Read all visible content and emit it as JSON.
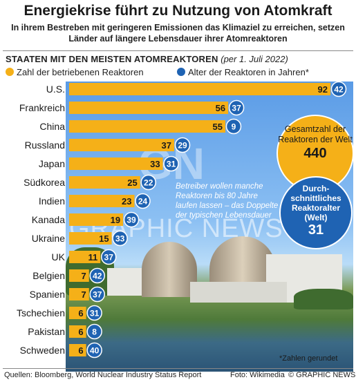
{
  "title": "Energiekrise führt zu Nutzung von Atomkraft",
  "subtitle": "In ihrem Bestreben mit geringeren Emissionen das Klimaziel zu erreichen, setzen Länder auf längere Lebensdauer ihrer Atomreaktoren",
  "chart_heading": "STAATEN MIT DEN MEISTEN ATOMREAKTOREN",
  "chart_date": "(per 1. Juli 2022)",
  "legend": [
    {
      "label": "Zahl der betriebenen Reaktoren",
      "color": "#f5b018"
    },
    {
      "label": "Alter der Reaktoren in Jahren*",
      "color": "#1f63b3"
    }
  ],
  "chart_data": {
    "type": "bar",
    "orientation": "horizontal",
    "categories": [
      "U.S.",
      "Frankreich",
      "China",
      "Russland",
      "Japan",
      "Südkorea",
      "Indien",
      "Kanada",
      "Ukraine",
      "UK",
      "Belgien",
      "Spanien",
      "Tschechien",
      "Pakistan",
      "Schweden"
    ],
    "series": [
      {
        "name": "Zahl der betriebenen Reaktoren",
        "values": [
          92,
          56,
          55,
          37,
          33,
          25,
          23,
          19,
          15,
          11,
          7,
          7,
          6,
          6,
          6
        ],
        "color": "#f5b018"
      },
      {
        "name": "Alter der Reaktoren in Jahren*",
        "values": [
          42,
          37,
          9,
          29,
          31,
          22,
          24,
          39,
          33,
          37,
          42,
          37,
          31,
          8,
          40
        ],
        "color": "#1f63b3"
      }
    ],
    "xlim": [
      0,
      92
    ]
  },
  "total_box": {
    "label": "Gesamtzahl der Reaktoren der Welt",
    "value": "440"
  },
  "age_box": {
    "label": "Durch-schnittliches Reaktoralter (Welt)",
    "value": "31"
  },
  "annotation": "Betreiber wollen manche Reaktoren bis 80 Jahre laufen lassen – das Doppelte der typischen Lebensdauer",
  "footnote": "*Zahlen gerundet",
  "sources": "Quellen: Bloomberg, World Nuclear Industry Status Report",
  "photo_credit": "Foto: Wikimedia",
  "copyright": "© GRAPHIC NEWS",
  "watermark": "GRAPHIC NEWS",
  "watermark_logo": "GN"
}
